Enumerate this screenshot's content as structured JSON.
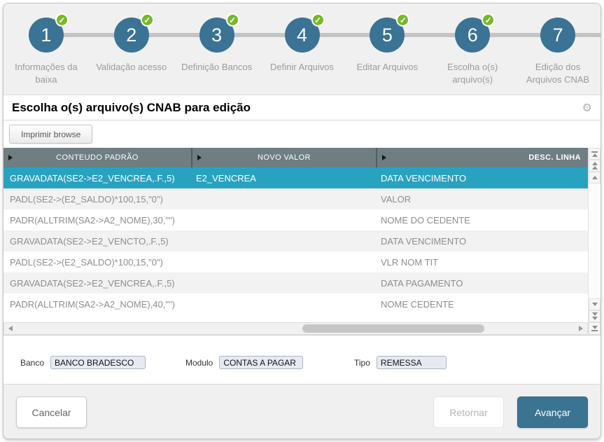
{
  "stepper": {
    "steps": [
      {
        "number": "1",
        "label": "Informações da baixa",
        "completed": true
      },
      {
        "number": "2",
        "label": "Validação acesso",
        "completed": true
      },
      {
        "number": "3",
        "label": "Definição Bancos",
        "completed": true
      },
      {
        "number": "4",
        "label": "Definir Arquivos",
        "completed": true
      },
      {
        "number": "5",
        "label": "Editar Arquivos",
        "completed": true
      },
      {
        "number": "6",
        "label": "Escolha o(s) arquivo(s)",
        "completed": true
      },
      {
        "number": "7",
        "label": "Edição dos Arquivos CNAB",
        "completed": false
      }
    ]
  },
  "header": {
    "title": "Escolha o(s) arquivo(s) CNAB para edição"
  },
  "toolbar": {
    "print_label": "Imprimir browse"
  },
  "table": {
    "columns": [
      "CONTEUDO PADRÃO",
      "NOVO VALOR",
      "DESC. LINHA"
    ],
    "rows": [
      {
        "conteudo": "GRAVADATA(SE2->E2_VENCREA,.F.,5)",
        "novo_valor": "E2_VENCREA",
        "desc": "DATA VENCIMENTO",
        "selected": true
      },
      {
        "conteudo": "PADL(SE2->(E2_SALDO)*100,15,\"0\")",
        "novo_valor": "",
        "desc": "VALOR",
        "selected": false
      },
      {
        "conteudo": "PADR(ALLTRIM(SA2->A2_NOME),30,\"\")",
        "novo_valor": "",
        "desc": "NOME DO CEDENTE",
        "selected": false
      },
      {
        "conteudo": "GRAVADATA(SE2->E2_VENCTO,.F.,5)",
        "novo_valor": "",
        "desc": "DATA VENCIMENTO",
        "selected": false
      },
      {
        "conteudo": "PADL(SE2->(E2_SALDO)*100,15,\"0\")",
        "novo_valor": "",
        "desc": "VLR NOM TIT",
        "selected": false
      },
      {
        "conteudo": "GRAVADATA(SE2->E2_VENCREA,.F.,5)",
        "novo_valor": "",
        "desc": "DATA PAGAMENTO",
        "selected": false
      },
      {
        "conteudo": "PADR(ALLTRIM(SA2->A2_NOME),40,\"\")",
        "novo_valor": "",
        "desc": "NOME CEDENTE",
        "selected": false
      }
    ]
  },
  "form": {
    "banco": {
      "label": "Banco",
      "value": "BANCO BRADESCO"
    },
    "modulo": {
      "label": "Modulo",
      "value": "CONTAS A PAGAR"
    },
    "tipo": {
      "label": "Tipo",
      "value": "REMESSA"
    }
  },
  "footer": {
    "cancel": "Cancelar",
    "back": "Retornar",
    "next": "Avançar"
  },
  "icons": {
    "check": "✓",
    "gear": "⚙"
  },
  "colors": {
    "step_circle": "#3a7394",
    "check_green": "#76b82a",
    "table_header": "#6e7e81",
    "selected_row": "#28a3bf",
    "primary_button": "#3b7492",
    "panel_bg": "#f0f0f0"
  }
}
